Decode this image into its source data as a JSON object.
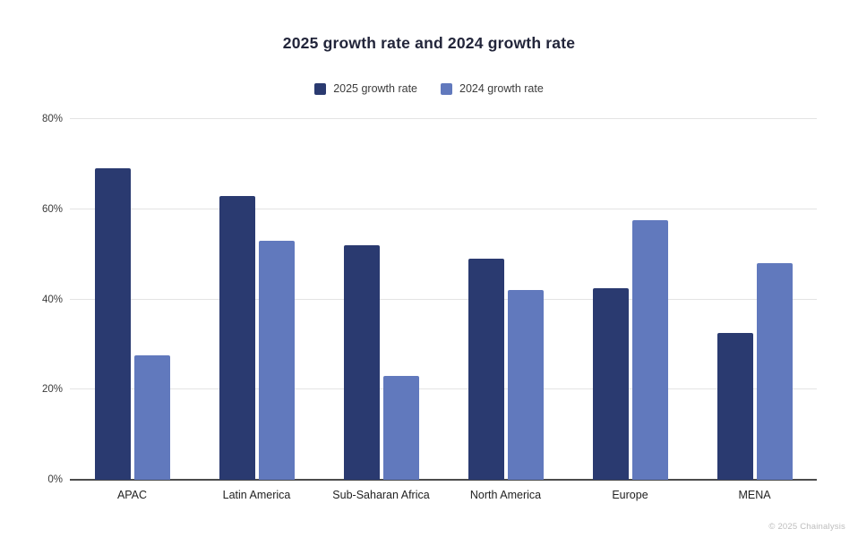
{
  "title": "2025 growth rate and 2024 growth rate",
  "footer": {
    "text": "© 2025 Chainalysis"
  },
  "colors": {
    "series_2025": "#2a3a70",
    "series_2024": "#6179bd",
    "title_text": "#22253a",
    "gridline": "#e4e4e4",
    "axis_line": "#4c4c4c",
    "tick_text": "#3a3a3a",
    "footer_text": "#bdbdbd",
    "background": "#ffffff"
  },
  "chart_data": {
    "type": "bar",
    "title": "2025 growth rate and 2024 growth rate",
    "categories": [
      "APAC",
      "Latin America",
      "Sub-Saharan Africa",
      "North America",
      "Europe",
      "MENA"
    ],
    "series": [
      {
        "name": "2025 growth rate",
        "color": "#2a3a70",
        "values": [
          69,
          63,
          52,
          49,
          42.5,
          32.5
        ]
      },
      {
        "name": "2024 growth rate",
        "color": "#6179bd",
        "values": [
          27.5,
          53,
          23,
          42,
          57.5,
          48
        ]
      }
    ],
    "xlabel": "",
    "ylabel": "",
    "ylim": [
      0,
      80
    ],
    "yticks": [
      "0%",
      "20%",
      "40%",
      "60%",
      "80%"
    ],
    "grid": true,
    "legend_position": "top"
  }
}
